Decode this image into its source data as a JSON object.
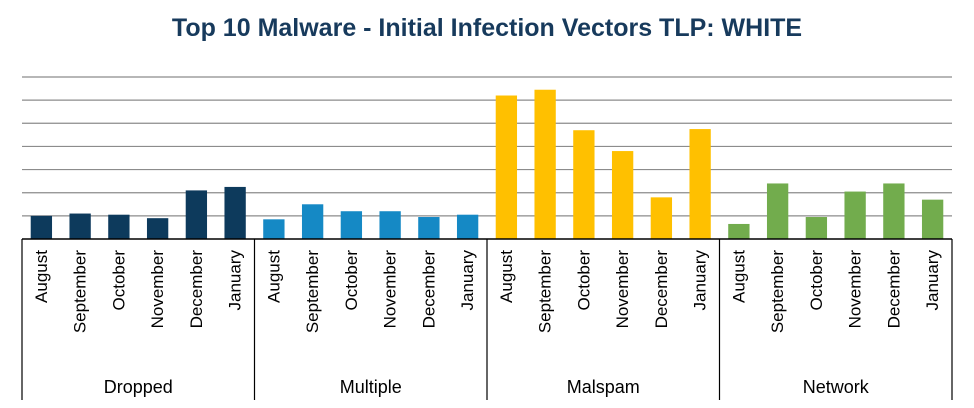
{
  "chart_data": {
    "type": "bar",
    "title": "Top 10 Malware - Initial Infection Vectors TLP: WHITE",
    "xlabel": "",
    "ylabel": "",
    "ylim": [
      0,
      7
    ],
    "grid": true,
    "groups": [
      {
        "name": "Dropped",
        "color": "#0d3a5c",
        "categories": [
          "August",
          "September",
          "October",
          "November",
          "December",
          "January"
        ],
        "values": [
          1.0,
          1.1,
          1.05,
          0.9,
          2.1,
          2.25
        ]
      },
      {
        "name": "Multiple",
        "color": "#1589c5",
        "categories": [
          "August",
          "September",
          "October",
          "November",
          "December",
          "January"
        ],
        "values": [
          0.85,
          1.5,
          1.2,
          1.2,
          0.95,
          1.05
        ]
      },
      {
        "name": "Malspam",
        "color": "#ffc000",
        "categories": [
          "August",
          "September",
          "October",
          "November",
          "December",
          "January"
        ],
        "values": [
          6.2,
          6.45,
          4.7,
          3.8,
          1.8,
          4.75
        ]
      },
      {
        "name": "Network",
        "color": "#72ac4d",
        "categories": [
          "August",
          "September",
          "October",
          "November",
          "December",
          "January"
        ],
        "values": [
          0.65,
          2.4,
          0.95,
          2.05,
          2.4,
          1.7
        ]
      }
    ]
  }
}
